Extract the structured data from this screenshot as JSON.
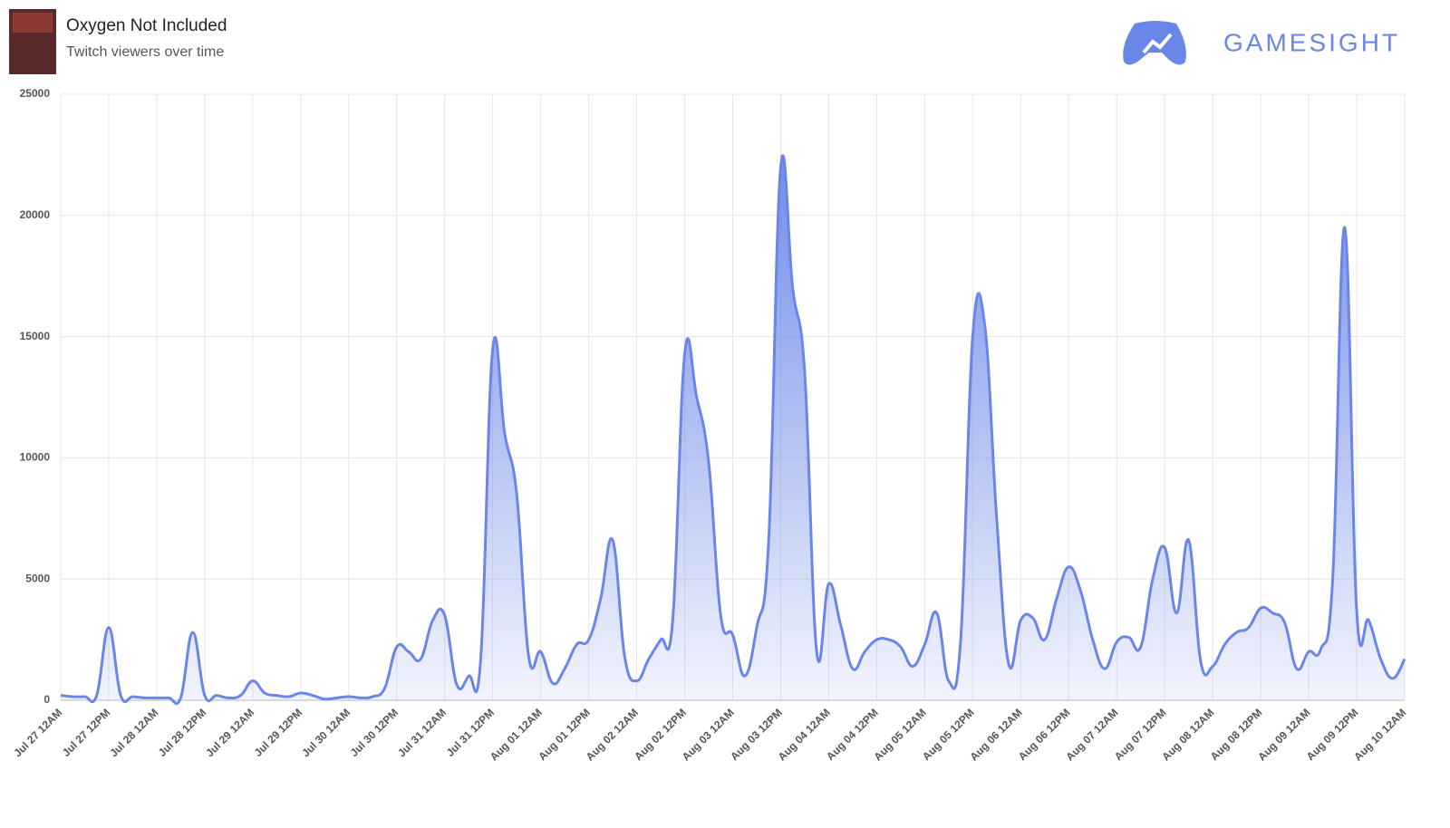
{
  "chart_data": {
    "type": "area",
    "title": "Oxygen Not Included",
    "subtitle": "Twitch viewers over time",
    "brand": "GAMESIGHT",
    "color": "#6a86e8",
    "grid": true,
    "ylim": [
      0,
      25000
    ],
    "yticks": [
      0,
      5000,
      10000,
      15000,
      20000,
      25000
    ],
    "categories": [
      "Jul 27 12AM",
      null,
      null,
      null,
      "Jul 27 12PM",
      null,
      null,
      null,
      "Jul 28 12AM",
      null,
      null,
      null,
      "Jul 28 12PM",
      null,
      null,
      null,
      "Jul 29 12AM",
      null,
      null,
      null,
      "Jul 29 12PM",
      null,
      null,
      null,
      "Jul 30 12AM",
      null,
      null,
      null,
      "Jul 30 12PM",
      null,
      null,
      null,
      "Jul 31 12AM",
      null,
      null,
      null,
      "Jul 31 12PM",
      null,
      null,
      null,
      "Aug 01 12AM",
      null,
      null,
      null,
      "Aug 01 12PM",
      null,
      null,
      null,
      "Aug 02 12AM",
      null,
      null,
      null,
      "Aug 02 12PM",
      null,
      null,
      null,
      "Aug 03 12AM",
      null,
      null,
      null,
      "Aug 03 12PM",
      null,
      null,
      null,
      "Aug 04 12AM",
      null,
      null,
      null,
      "Aug 04 12PM",
      null,
      null,
      null,
      "Aug 05 12AM",
      null,
      null,
      null,
      "Aug 05 12PM",
      null,
      null,
      null,
      "Aug 06 12AM",
      null,
      null,
      null,
      "Aug 06 12PM",
      null,
      null,
      null,
      "Aug 07 12AM",
      null,
      null,
      null,
      "Aug 07 12PM",
      null,
      null,
      null,
      "Aug 08 12AM",
      null,
      null,
      null,
      "Aug 08 12PM",
      null,
      null,
      null,
      "Aug 09 12AM",
      null,
      null,
      null,
      "Aug 09 12PM",
      null,
      null,
      null,
      "Aug 10 12AM"
    ],
    "values": [
      200,
      150,
      150,
      200,
      3000,
      200,
      150,
      100,
      100,
      100,
      100,
      2800,
      200,
      200,
      100,
      200,
      800,
      300,
      200,
      150,
      300,
      200,
      50,
      100,
      150,
      100,
      150,
      500,
      2200,
      2000,
      1700,
      3300,
      3500,
      650,
      1000,
      1700,
      14500,
      11000,
      8500,
      1800,
      2000,
      700,
      1300,
      2300,
      2500,
      4200,
      6600,
      1800,
      800,
      1700,
      2500,
      3300,
      14300,
      12500,
      9800,
      3500,
      2700,
      1000,
      3000,
      6600,
      22000,
      17000,
      13500,
      2000,
      4800,
      3100,
      1300,
      2000,
      2500,
      2500,
      2200,
      1400,
      2300,
      3600,
      800,
      2500,
      15000,
      15500,
      7500,
      1500,
      3300,
      3400,
      2500,
      4200,
      5500,
      4500,
      2500,
      1300,
      2400,
      2600,
      2200,
      5000,
      6300,
      3600,
      6600,
      1600,
      1400,
      2300,
      2800,
      3000,
      3800,
      3600,
      3200,
      1300,
      2000,
      2100,
      5000,
      19500,
      3700,
      3300,
      1700,
      900,
      1700
    ]
  }
}
